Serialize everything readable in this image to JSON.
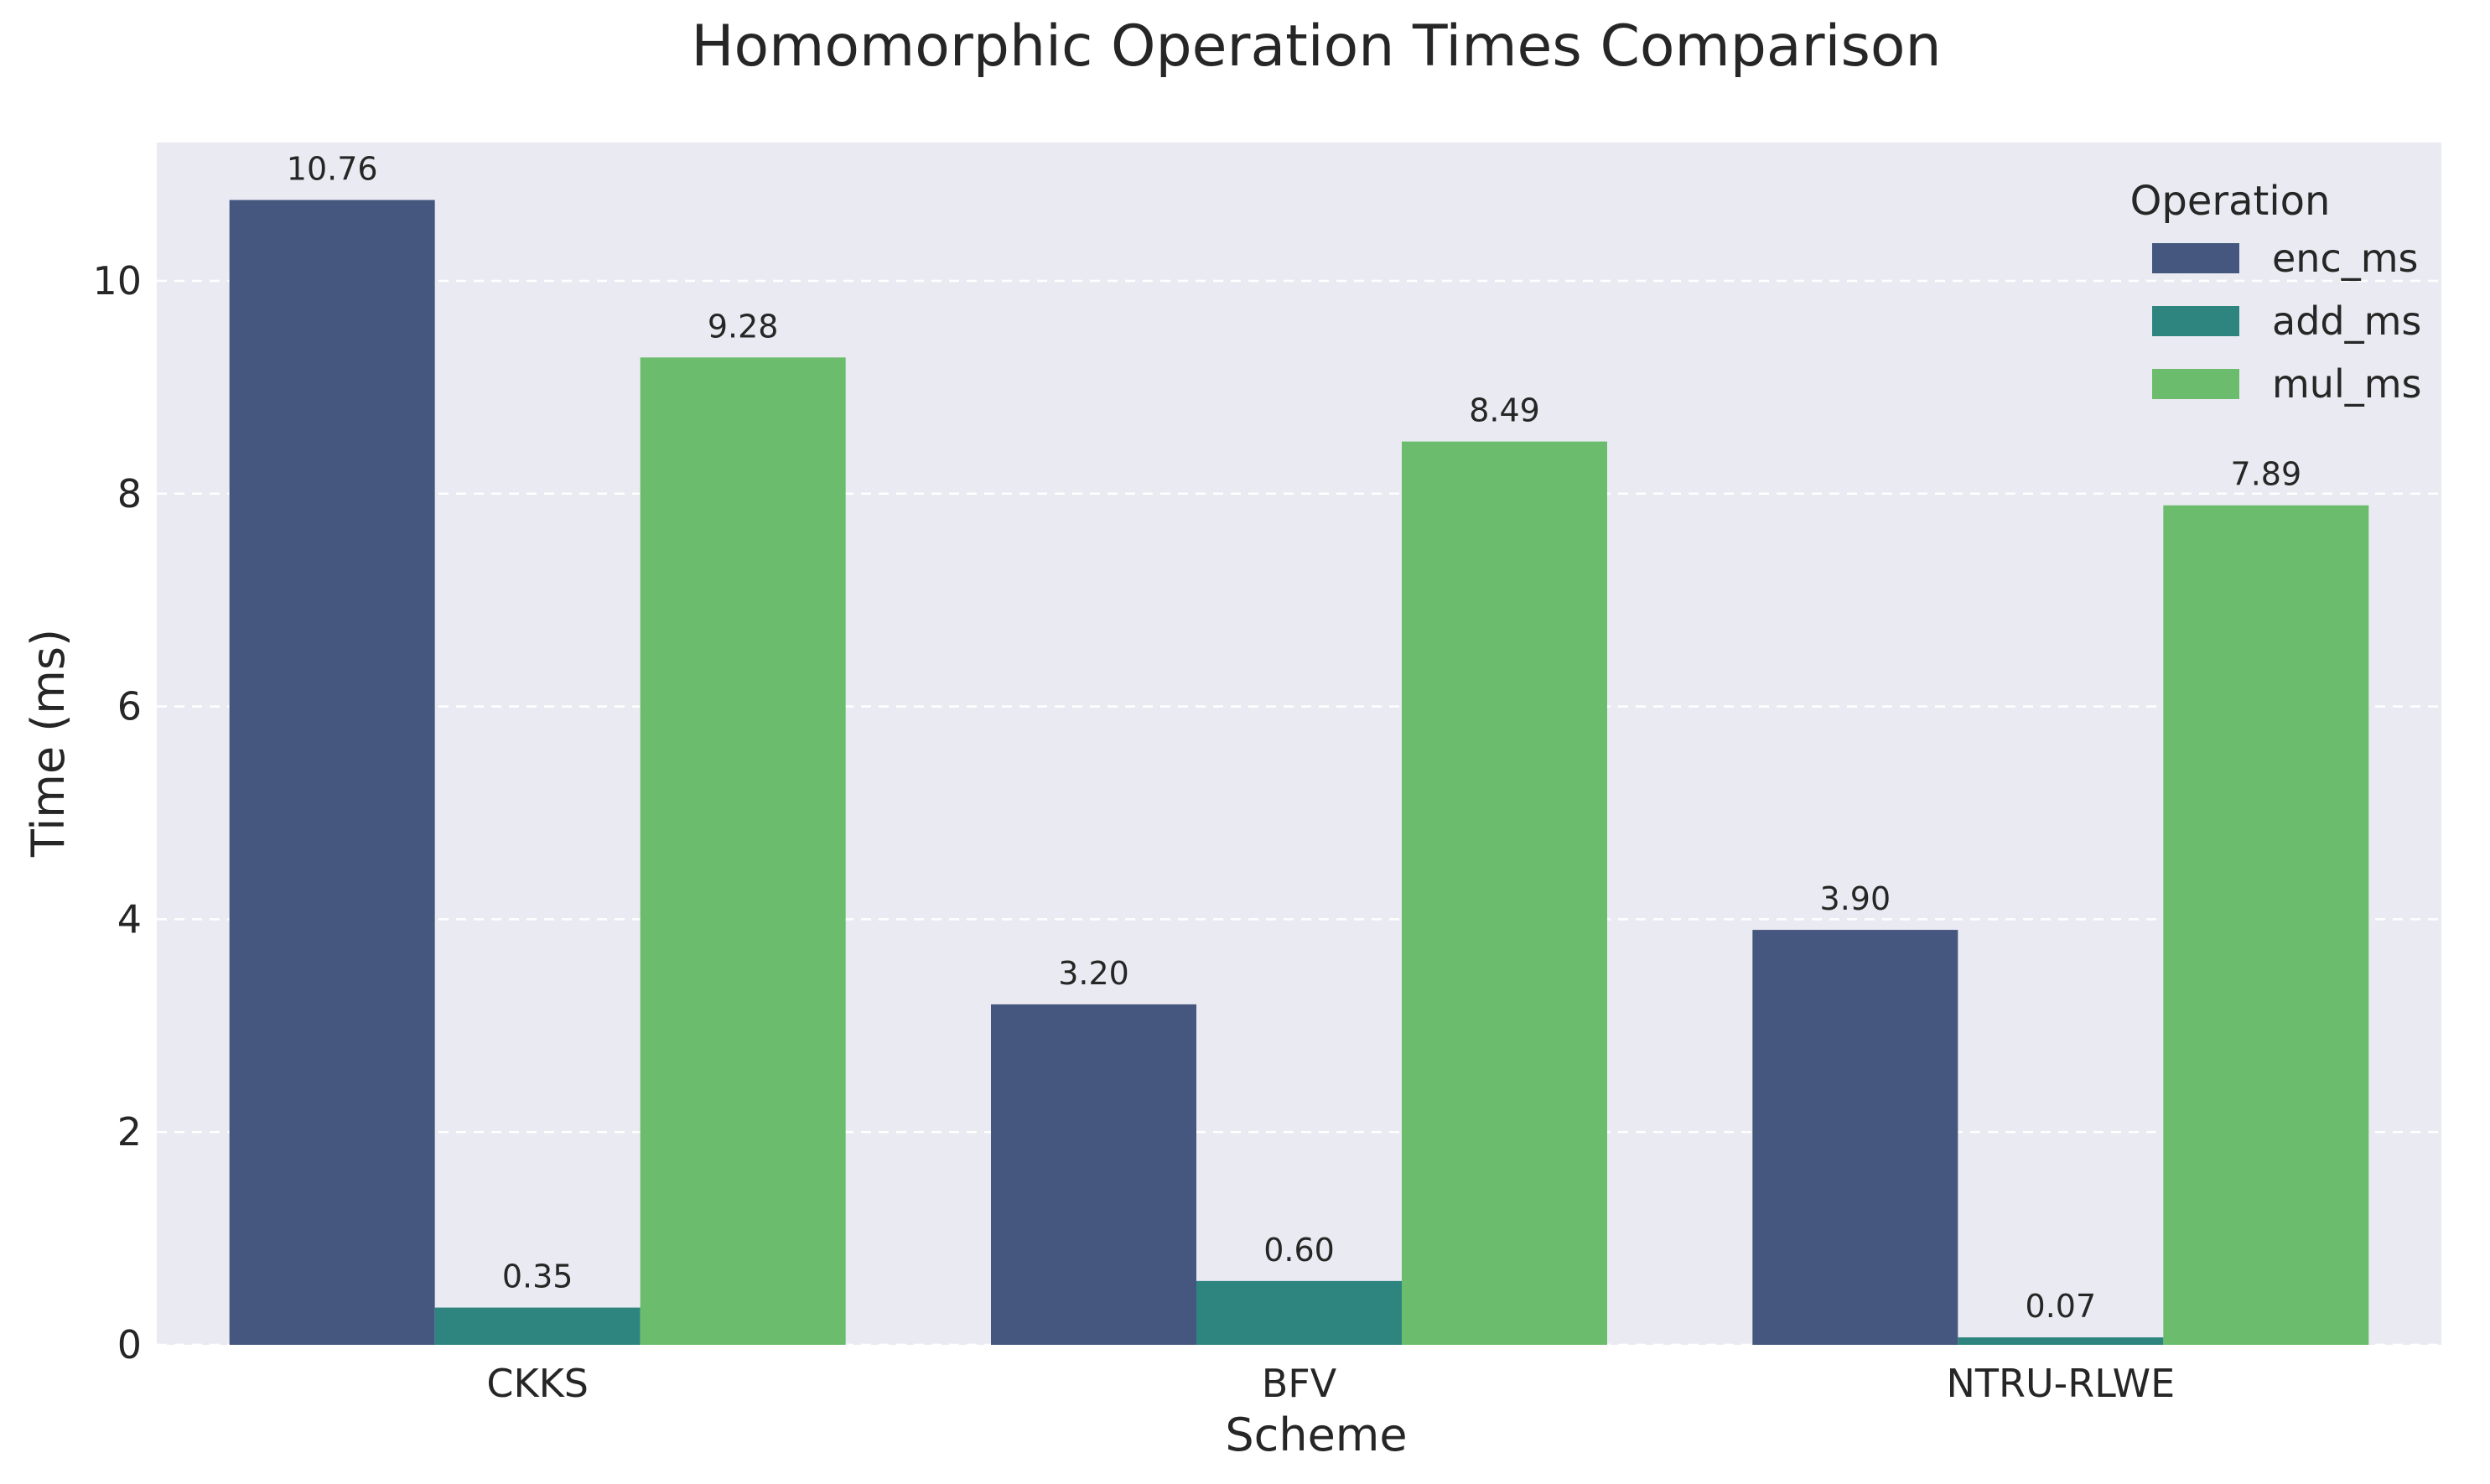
{
  "chart_data": {
    "type": "bar",
    "title": "Homomorphic Operation Times Comparison",
    "xlabel": "Scheme",
    "ylabel": "Time (ms)",
    "categories": [
      "CKKS",
      "BFV",
      "NTRU-RLWE"
    ],
    "series": [
      {
        "name": "enc_ms",
        "color": "#45577f",
        "values": [
          10.76,
          3.2,
          3.9
        ],
        "labels": [
          "10.76",
          "3.20",
          "3.90"
        ]
      },
      {
        "name": "add_ms",
        "color": "#2e857f",
        "values": [
          0.35,
          0.6,
          0.07
        ],
        "labels": [
          "0.35",
          "0.60",
          "0.07"
        ]
      },
      {
        "name": "mul_ms",
        "color": "#6bbd6d",
        "values": [
          9.28,
          8.49,
          7.89
        ],
        "labels": [
          "9.28",
          "8.49",
          "7.89"
        ]
      }
    ],
    "ylim": [
      0,
      11.3
    ],
    "yticks": [
      0,
      2,
      4,
      6,
      8,
      10
    ],
    "grid": true,
    "legend": {
      "title": "Operation",
      "position": "top-right"
    },
    "plot_background": "#eaeaf2"
  }
}
